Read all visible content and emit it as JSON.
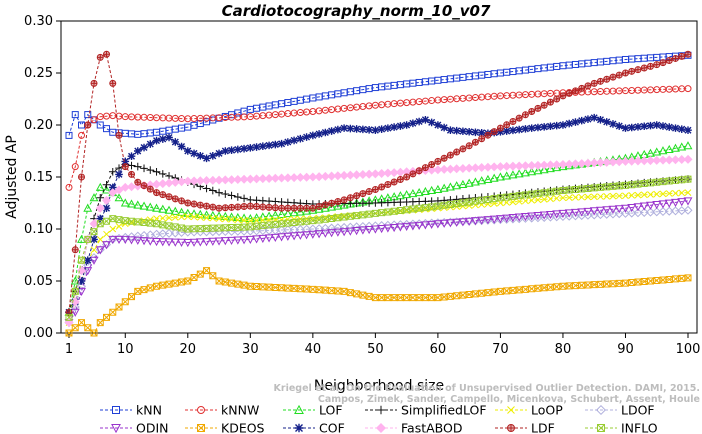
{
  "chart_data": {
    "type": "line",
    "title": "Cardiotocography_norm_10_v07",
    "xlabel": "Neighborhood size",
    "ylabel": "Adjusted AP",
    "xlim": [
      1,
      100
    ],
    "ylim": [
      0,
      0.3
    ],
    "xticks": [
      "1",
      "10",
      "20",
      "30",
      "40",
      "50",
      "60",
      "70",
      "80",
      "90",
      "100"
    ],
    "yticks": [
      "0.00",
      "0.05",
      "0.10",
      "0.15",
      "0.20",
      "0.25",
      "0.30"
    ],
    "legend_position": "bottom",
    "grid": false,
    "series": [
      {
        "name": "kNN",
        "color": "#1f3fd6",
        "marker": "square",
        "points": [
          [
            1,
            0.19
          ],
          [
            2,
            0.21
          ],
          [
            3,
            0.2
          ],
          [
            4,
            0.21
          ],
          [
            6,
            0.2
          ],
          [
            8,
            0.193
          ],
          [
            10,
            0.192
          ],
          [
            12,
            0.191
          ],
          [
            15,
            0.193
          ],
          [
            20,
            0.198
          ],
          [
            30,
            0.215
          ],
          [
            40,
            0.226
          ],
          [
            50,
            0.236
          ],
          [
            60,
            0.243
          ],
          [
            70,
            0.25
          ],
          [
            80,
            0.257
          ],
          [
            90,
            0.263
          ],
          [
            100,
            0.267
          ]
        ]
      },
      {
        "name": "kNNW",
        "color": "#e03030",
        "marker": "circle",
        "points": [
          [
            1,
            0.14
          ],
          [
            2,
            0.16
          ],
          [
            3,
            0.19
          ],
          [
            4,
            0.2
          ],
          [
            5,
            0.205
          ],
          [
            6,
            0.208
          ],
          [
            8,
            0.209
          ],
          [
            10,
            0.208
          ],
          [
            15,
            0.207
          ],
          [
            20,
            0.206
          ],
          [
            30,
            0.208
          ],
          [
            40,
            0.213
          ],
          [
            50,
            0.219
          ],
          [
            60,
            0.224
          ],
          [
            70,
            0.228
          ],
          [
            80,
            0.231
          ],
          [
            90,
            0.233
          ],
          [
            100,
            0.235
          ]
        ]
      },
      {
        "name": "LOF",
        "color": "#22dd22",
        "marker": "triangle-up",
        "points": [
          [
            1,
            0.02
          ],
          [
            2,
            0.05
          ],
          [
            3,
            0.09
          ],
          [
            4,
            0.12
          ],
          [
            5,
            0.13
          ],
          [
            6,
            0.14
          ],
          [
            8,
            0.135
          ],
          [
            10,
            0.125
          ],
          [
            15,
            0.12
          ],
          [
            20,
            0.115
          ],
          [
            30,
            0.11
          ],
          [
            40,
            0.118
          ],
          [
            50,
            0.128
          ],
          [
            60,
            0.138
          ],
          [
            70,
            0.15
          ],
          [
            80,
            0.16
          ],
          [
            90,
            0.168
          ],
          [
            100,
            0.18
          ]
        ]
      },
      {
        "name": "SimplifiedLOF",
        "color": "#111111",
        "marker": "plus",
        "points": [
          [
            1,
            0.02
          ],
          [
            2,
            0.04
          ],
          [
            3,
            0.06
          ],
          [
            4,
            0.09
          ],
          [
            5,
            0.11
          ],
          [
            6,
            0.13
          ],
          [
            8,
            0.155
          ],
          [
            10,
            0.162
          ],
          [
            12,
            0.16
          ],
          [
            15,
            0.155
          ],
          [
            20,
            0.145
          ],
          [
            25,
            0.135
          ],
          [
            30,
            0.128
          ],
          [
            40,
            0.124
          ],
          [
            50,
            0.125
          ],
          [
            60,
            0.127
          ],
          [
            70,
            0.132
          ],
          [
            80,
            0.138
          ],
          [
            90,
            0.143
          ],
          [
            100,
            0.148
          ]
        ]
      },
      {
        "name": "LoOP",
        "color": "#eeee00",
        "marker": "cross",
        "points": [
          [
            1,
            0.01
          ],
          [
            2,
            0.03
          ],
          [
            3,
            0.05
          ],
          [
            4,
            0.07
          ],
          [
            6,
            0.09
          ],
          [
            8,
            0.1
          ],
          [
            10,
            0.105
          ],
          [
            15,
            0.11
          ],
          [
            20,
            0.112
          ],
          [
            30,
            0.108
          ],
          [
            40,
            0.11
          ],
          [
            50,
            0.115
          ],
          [
            60,
            0.12
          ],
          [
            70,
            0.125
          ],
          [
            80,
            0.13
          ],
          [
            90,
            0.132
          ],
          [
            100,
            0.135
          ]
        ]
      },
      {
        "name": "LDOF",
        "color": "#b0b0dd",
        "marker": "diamond",
        "points": [
          [
            1,
            0.01
          ],
          [
            2,
            0.025
          ],
          [
            3,
            0.045
          ],
          [
            4,
            0.065
          ],
          [
            6,
            0.08
          ],
          [
            8,
            0.09
          ],
          [
            10,
            0.092
          ],
          [
            15,
            0.095
          ],
          [
            20,
            0.097
          ],
          [
            30,
            0.098
          ],
          [
            40,
            0.1
          ],
          [
            50,
            0.103
          ],
          [
            60,
            0.106
          ],
          [
            70,
            0.109
          ],
          [
            80,
            0.112
          ],
          [
            90,
            0.115
          ],
          [
            100,
            0.118
          ]
        ]
      },
      {
        "name": "ODIN",
        "color": "#9933cc",
        "marker": "triangle-down",
        "points": [
          [
            1,
            0.01
          ],
          [
            2,
            0.02
          ],
          [
            3,
            0.04
          ],
          [
            4,
            0.06
          ],
          [
            6,
            0.08
          ],
          [
            8,
            0.09
          ],
          [
            10,
            0.09
          ],
          [
            15,
            0.088
          ],
          [
            20,
            0.087
          ],
          [
            30,
            0.09
          ],
          [
            40,
            0.095
          ],
          [
            50,
            0.1
          ],
          [
            60,
            0.105
          ],
          [
            70,
            0.11
          ],
          [
            80,
            0.115
          ],
          [
            90,
            0.12
          ],
          [
            100,
            0.127
          ]
        ]
      },
      {
        "name": "KDEOS",
        "color": "#f0a800",
        "marker": "square-x",
        "points": [
          [
            1,
            0.0
          ],
          [
            2,
            0.005
          ],
          [
            3,
            0.01
          ],
          [
            4,
            0.005
          ],
          [
            5,
            0.0
          ],
          [
            6,
            0.01
          ],
          [
            8,
            0.02
          ],
          [
            10,
            0.03
          ],
          [
            12,
            0.04
          ],
          [
            15,
            0.045
          ],
          [
            20,
            0.05
          ],
          [
            23,
            0.06
          ],
          [
            25,
            0.05
          ],
          [
            30,
            0.045
          ],
          [
            40,
            0.042
          ],
          [
            45,
            0.04
          ],
          [
            50,
            0.034
          ],
          [
            60,
            0.034
          ],
          [
            70,
            0.04
          ],
          [
            80,
            0.045
          ],
          [
            90,
            0.048
          ],
          [
            100,
            0.053
          ]
        ]
      },
      {
        "name": "COF",
        "color": "#14208a",
        "marker": "asterisk",
        "points": [
          [
            1,
            0.02
          ],
          [
            2,
            0.03
          ],
          [
            3,
            0.05
          ],
          [
            4,
            0.07
          ],
          [
            5,
            0.09
          ],
          [
            6,
            0.11
          ],
          [
            7,
            0.12
          ],
          [
            8,
            0.14
          ],
          [
            10,
            0.165
          ],
          [
            12,
            0.175
          ],
          [
            15,
            0.185
          ],
          [
            17,
            0.188
          ],
          [
            20,
            0.175
          ],
          [
            23,
            0.168
          ],
          [
            26,
            0.175
          ],
          [
            30,
            0.178
          ],
          [
            35,
            0.182
          ],
          [
            40,
            0.19
          ],
          [
            45,
            0.197
          ],
          [
            50,
            0.195
          ],
          [
            55,
            0.2
          ],
          [
            58,
            0.205
          ],
          [
            62,
            0.195
          ],
          [
            68,
            0.192
          ],
          [
            75,
            0.197
          ],
          [
            80,
            0.2
          ],
          [
            85,
            0.207
          ],
          [
            90,
            0.197
          ],
          [
            95,
            0.2
          ],
          [
            100,
            0.195
          ]
        ]
      },
      {
        "name": "FastABOD",
        "color": "#ffb3ee",
        "marker": "diamond-filled",
        "points": [
          [
            1,
            0.01
          ],
          [
            2,
            0.03
          ],
          [
            3,
            0.06
          ],
          [
            4,
            0.09
          ],
          [
            6,
            0.12
          ],
          [
            8,
            0.135
          ],
          [
            10,
            0.14
          ],
          [
            15,
            0.143
          ],
          [
            20,
            0.146
          ],
          [
            30,
            0.148
          ],
          [
            40,
            0.15
          ],
          [
            50,
            0.153
          ],
          [
            60,
            0.157
          ],
          [
            70,
            0.16
          ],
          [
            80,
            0.162
          ],
          [
            90,
            0.165
          ],
          [
            100,
            0.167
          ]
        ]
      },
      {
        "name": "LDF",
        "color": "#b22222",
        "marker": "circle-plus",
        "points": [
          [
            1,
            0.02
          ],
          [
            2,
            0.08
          ],
          [
            3,
            0.15
          ],
          [
            4,
            0.2
          ],
          [
            5,
            0.24
          ],
          [
            6,
            0.265
          ],
          [
            7,
            0.268
          ],
          [
            8,
            0.24
          ],
          [
            9,
            0.19
          ],
          [
            10,
            0.16
          ],
          [
            12,
            0.145
          ],
          [
            15,
            0.135
          ],
          [
            20,
            0.125
          ],
          [
            25,
            0.12
          ],
          [
            30,
            0.122
          ],
          [
            35,
            0.12
          ],
          [
            40,
            0.12
          ],
          [
            45,
            0.128
          ],
          [
            50,
            0.138
          ],
          [
            55,
            0.15
          ],
          [
            60,
            0.165
          ],
          [
            65,
            0.18
          ],
          [
            70,
            0.197
          ],
          [
            75,
            0.213
          ],
          [
            80,
            0.228
          ],
          [
            85,
            0.24
          ],
          [
            90,
            0.25
          ],
          [
            95,
            0.258
          ],
          [
            100,
            0.268
          ]
        ]
      },
      {
        "name": "INFLO",
        "color": "#99cc33",
        "marker": "square-x",
        "points": [
          [
            1,
            0.015
          ],
          [
            2,
            0.04
          ],
          [
            3,
            0.07
          ],
          [
            4,
            0.09
          ],
          [
            6,
            0.105
          ],
          [
            8,
            0.11
          ],
          [
            10,
            0.108
          ],
          [
            15,
            0.105
          ],
          [
            20,
            0.1
          ],
          [
            30,
            0.102
          ],
          [
            40,
            0.108
          ],
          [
            50,
            0.115
          ],
          [
            60,
            0.122
          ],
          [
            70,
            0.13
          ],
          [
            80,
            0.137
          ],
          [
            90,
            0.142
          ],
          [
            100,
            0.148
          ]
        ]
      }
    ],
    "watermark": [
      "Kriegel et al. On the Evaluation of Unsupervised Outlier Detection. DAMI, 2015.",
      "Campos, Zimek, Sander, Campello, Micenkova, Schubert, Assent, Houle"
    ]
  }
}
